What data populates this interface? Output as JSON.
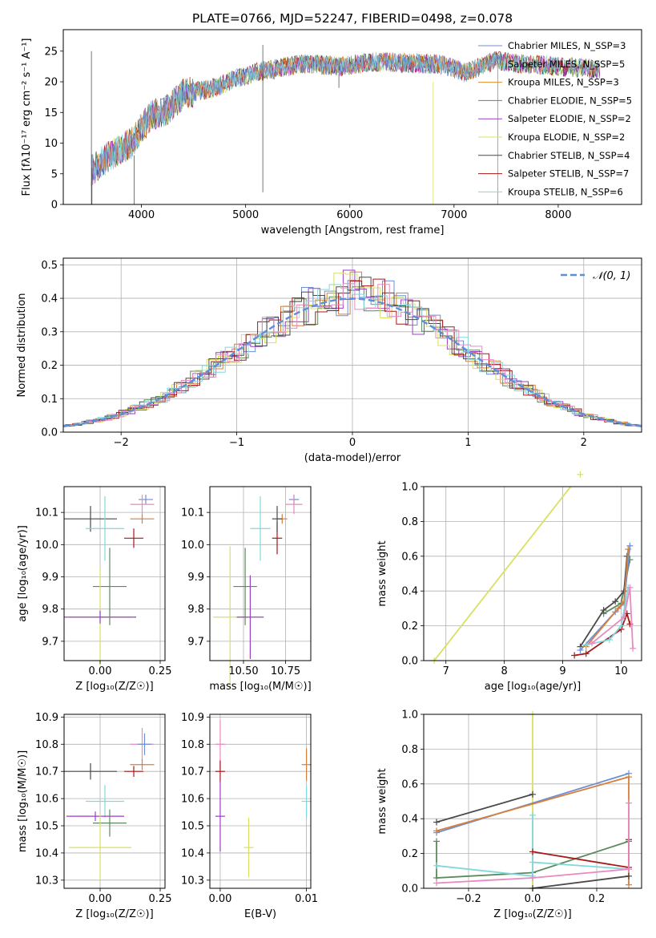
{
  "figure_title": "PLATE=0766, MJD=52247, FIBERID=0498, z=0.078",
  "colors": {
    "Chabrier MILES": "#6d8fd6",
    "Salpeter MILES": "#d67f3c",
    "Kroupa MILES": "#e28b2c",
    "Chabrier ELODIE": "#5c8a5c",
    "Salpeter ELODIE": "#9b3fc4",
    "Kroupa ELODIE": "#d9e060",
    "Chabrier STELIB": "#4a4a4a",
    "Salpeter STELIB": "#a81818",
    "Kroupa STELIB": "#80d8dc",
    "pink": "#e889c0",
    "gauss": "#5b8fd6"
  },
  "chart_data": [
    {
      "type": "line",
      "title": "PLATE=0766, MJD=52247, FIBERID=0498, z=0.078",
      "xlabel": "wavelength [Angstrom, rest frame]",
      "ylabel": "Flux [fλ10⁻¹⁷ erg cm⁻² s⁻¹ A⁻¹]",
      "xlim": [
        3250,
        8800
      ],
      "ylim": [
        0,
        28.5
      ],
      "xticks": [
        "4000",
        "5000",
        "6000",
        "7000",
        "8000"
      ],
      "yticks": [
        "0",
        "5",
        "10",
        "15",
        "20",
        "25"
      ],
      "grid": false,
      "legend_position": "upper right",
      "legend": [
        "Chabrier MILES, N_SSP=3",
        "Salpeter MILES, N_SSP=5",
        "Kroupa MILES, N_SSP=3",
        "Chabrier ELODIE, N_SSP=5",
        "Salpeter ELODIE, N_SSP=2",
        "Kroupa ELODIE, N_SSP=2",
        "Chabrier STELIB, N_SSP=4",
        "Salpeter STELIB, N_SSP=7",
        "Kroupa STELIB, N_SSP=6"
      ],
      "continuum": [
        [
          3520,
          5.5
        ],
        [
          3700,
          8
        ],
        [
          3900,
          10
        ],
        [
          4000,
          12.5
        ],
        [
          4100,
          14.5
        ],
        [
          4250,
          15.5
        ],
        [
          4400,
          18
        ],
        [
          4700,
          19
        ],
        [
          4900,
          20.5
        ],
        [
          5100,
          21.5
        ],
        [
          5400,
          22.5
        ],
        [
          5600,
          23
        ],
        [
          5900,
          22.5
        ],
        [
          6100,
          23
        ],
        [
          6300,
          23.3
        ],
        [
          6600,
          23
        ],
        [
          6900,
          22.8
        ],
        [
          7100,
          21.5
        ],
        [
          7400,
          23.5
        ],
        [
          7600,
          23
        ],
        [
          8000,
          22.5
        ],
        [
          8400,
          22
        ]
      ]
    },
    {
      "type": "histogram",
      "xlabel": "(data-model)/error",
      "ylabel": "Normed distribution",
      "xlim": [
        -2.5,
        2.5
      ],
      "ylim": [
        0,
        0.52
      ],
      "xticks": [
        "−2",
        "−1",
        "0",
        "1",
        "2"
      ],
      "yticks": [
        "0.0",
        "0.1",
        "0.2",
        "0.3",
        "0.4",
        "0.5"
      ],
      "grid": true,
      "legend": [
        "𝒩(0, 1)"
      ],
      "legend_position": "upper right"
    },
    {
      "type": "scatter",
      "xlabel": "Z [log₁₀(Z/Z☉)]",
      "ylabel": "age  [log₁₀(age/yr)]",
      "xlim": [
        -0.15,
        0.27
      ],
      "ylim": [
        9.64,
        10.18
      ],
      "xticks": [
        "0.00",
        "0.25"
      ],
      "yticks": [
        "9.7",
        "9.8",
        "9.9",
        "10.0",
        "10.1"
      ],
      "grid": true,
      "points": [
        {
          "series": "Chabrier MILES",
          "x": 0.19,
          "y": 10.14,
          "xerr": 0.03,
          "yerr": 0.0
        },
        {
          "series": "Salpeter MILES",
          "x": 0.175,
          "y": 10.08,
          "xerr": 0.05,
          "yerr": 0.01
        },
        {
          "series": "pink",
          "x": 0.175,
          "y": 10.125,
          "xerr": 0.05,
          "yerr": 0.03
        },
        {
          "series": "Chabrier STELIB",
          "x": -0.04,
          "y": 10.08,
          "xerr": 0.11,
          "yerr": 0.04
        },
        {
          "series": "Kroupa STELIB",
          "x": 0.02,
          "y": 10.05,
          "xerr": 0.08,
          "yerr": 0.1
        },
        {
          "series": "Salpeter STELIB",
          "x": 0.14,
          "y": 10.02,
          "xerr": 0.04,
          "yerr": 0.03
        },
        {
          "series": "Chabrier ELODIE",
          "x": 0.04,
          "y": 9.87,
          "xerr": 0.07,
          "yerr": 0.12
        },
        {
          "series": "Kroupa ELODIE",
          "x": 0.0,
          "y": 9.775,
          "xerr": 0.13,
          "yerr": 0.15
        },
        {
          "series": "Salpeter ELODIE",
          "x": 0.0,
          "y": 9.775,
          "xerr": 0.15,
          "yerr": 0.02
        }
      ]
    },
    {
      "type": "scatter",
      "xlabel": "mass [log₁₀(M/M☉)]",
      "ylabel": "",
      "xlim": [
        10.3,
        10.9
      ],
      "ylim": [
        9.64,
        10.18
      ],
      "xticks": [
        "10.50",
        "10.75"
      ],
      "yticks": [
        "9.7",
        "9.8",
        "9.9",
        "10.0",
        "10.1"
      ],
      "grid": true,
      "points": [
        {
          "series": "Chabrier MILES",
          "x": 10.8,
          "y": 10.14,
          "xerr": 0.03,
          "yerr": 0.0
        },
        {
          "series": "Salpeter MILES",
          "x": 10.73,
          "y": 10.08,
          "xerr": 0.03,
          "yerr": 0.01
        },
        {
          "series": "pink",
          "x": 10.8,
          "y": 10.125,
          "xerr": 0.05,
          "yerr": 0.03
        },
        {
          "series": "Kroupa STELIB",
          "x": 10.6,
          "y": 10.05,
          "xerr": 0.06,
          "yerr": 0.1
        },
        {
          "series": "Salpeter STELIB",
          "x": 10.7,
          "y": 10.02,
          "xerr": 0.03,
          "yerr": 0.05
        },
        {
          "series": "Chabrier STELIB",
          "x": 10.7,
          "y": 10.08,
          "xerr": 0.03,
          "yerr": 0.04
        },
        {
          "series": "Chabrier ELODIE",
          "x": 10.51,
          "y": 9.87,
          "xerr": 0.07,
          "yerr": 0.12
        },
        {
          "series": "Kroupa ELODIE",
          "x": 10.42,
          "y": 9.775,
          "xerr": 0.1,
          "yerr": 0.22
        },
        {
          "series": "Salpeter ELODIE",
          "x": 10.54,
          "y": 9.775,
          "xerr": 0.08,
          "yerr": 0.13
        }
      ]
    },
    {
      "type": "line",
      "xlabel": "age  [log₁₀(age/yr)]",
      "ylabel": "mass weight",
      "xlim": [
        6.62,
        10.35
      ],
      "ylim": [
        0,
        1
      ],
      "xticks": [
        "7",
        "8",
        "9",
        "10"
      ],
      "yticks": [
        "0.0",
        "0.2",
        "0.4",
        "0.6",
        "0.8",
        "1.0"
      ],
      "grid": true,
      "series": [
        {
          "color": "Kroupa ELODIE",
          "points": [
            [
              6.8,
              0.0
            ],
            [
              9.3,
              1.07
            ]
          ]
        },
        {
          "color": "Chabrier ELODIE",
          "points": [
            [
              9.7,
              0.27
            ],
            [
              10.0,
              0.33
            ],
            [
              10.15,
              0.58
            ]
          ]
        },
        {
          "color": "Chabrier STELIB",
          "points": [
            [
              9.3,
              0.08
            ],
            [
              9.7,
              0.29
            ],
            [
              9.9,
              0.34
            ],
            [
              10.05,
              0.4
            ],
            [
              10.1,
              0.6
            ]
          ]
        },
        {
          "color": "Chabrier MILES",
          "points": [
            [
              9.3,
              0.06
            ],
            [
              9.9,
              0.28
            ],
            [
              10.05,
              0.33
            ],
            [
              10.15,
              0.66
            ]
          ]
        },
        {
          "color": "Salpeter MILES",
          "points": [
            [
              9.4,
              0.08
            ],
            [
              9.95,
              0.3
            ],
            [
              10.05,
              0.34
            ],
            [
              10.12,
              0.64
            ]
          ]
        },
        {
          "color": "Salpeter STELIB",
          "points": [
            [
              9.2,
              0.03
            ],
            [
              9.4,
              0.04
            ],
            [
              10.0,
              0.18
            ],
            [
              10.1,
              0.27
            ],
            [
              10.15,
              0.21
            ]
          ]
        },
        {
          "color": "Kroupa STELIB",
          "points": [
            [
              9.4,
              0.09
            ],
            [
              9.8,
              0.12
            ],
            [
              10.0,
              0.2
            ],
            [
              10.12,
              0.42
            ]
          ]
        },
        {
          "color": "pink",
          "points": [
            [
              9.5,
              0.1
            ],
            [
              10.05,
              0.25
            ],
            [
              10.15,
              0.42
            ],
            [
              10.2,
              0.07
            ]
          ]
        }
      ]
    },
    {
      "type": "scatter",
      "xlabel": "Z [log₁₀(Z/Z☉)]",
      "ylabel": "mass [log₁₀(M/M☉)]",
      "xlim": [
        -0.15,
        0.27
      ],
      "ylim": [
        10.27,
        10.91
      ],
      "xticks": [
        "0.00",
        "0.25"
      ],
      "yticks": [
        "10.3",
        "10.4",
        "10.5",
        "10.6",
        "10.7",
        "10.8",
        "10.9"
      ],
      "grid": true,
      "points": [
        {
          "series": "pink",
          "x": 0.175,
          "y": 10.8,
          "xerr": 0.05,
          "yerr": 0.06
        },
        {
          "series": "Chabrier MILES",
          "x": 0.185,
          "y": 10.8,
          "xerr": 0.03,
          "yerr": 0.04
        },
        {
          "series": "Salpeter MILES",
          "x": 0.175,
          "y": 10.725,
          "xerr": 0.05,
          "yerr": 0.02
        },
        {
          "series": "Chabrier STELIB",
          "x": -0.04,
          "y": 10.7,
          "xerr": 0.11,
          "yerr": 0.03
        },
        {
          "series": "Salpeter STELIB",
          "x": 0.14,
          "y": 10.7,
          "xerr": 0.04,
          "yerr": 0.02
        },
        {
          "series": "Kroupa STELIB",
          "x": 0.02,
          "y": 10.59,
          "xerr": 0.08,
          "yerr": 0.06
        },
        {
          "series": "Salpeter ELODIE",
          "x": -0.02,
          "y": 10.535,
          "xerr": 0.12,
          "yerr": 0.01
        },
        {
          "series": "Chabrier ELODIE",
          "x": 0.04,
          "y": 10.51,
          "xerr": 0.07,
          "yerr": 0.05
        },
        {
          "series": "Kroupa ELODIE",
          "x": 0.0,
          "y": 10.42,
          "xerr": 0.13,
          "yerr": 0.12
        }
      ]
    },
    {
      "type": "scatter",
      "xlabel": "E(B-V)",
      "ylabel": "",
      "xlim": [
        -0.0012,
        0.0105
      ],
      "ylim": [
        10.27,
        10.91
      ],
      "xticks": [
        "0.00",
        "0.01"
      ],
      "yticks": [
        "10.3",
        "10.4",
        "10.5",
        "10.6",
        "10.7",
        "10.8",
        "10.9"
      ],
      "grid": true,
      "points": [
        {
          "series": "pink",
          "x": 0.0,
          "y": 10.8,
          "xerr": 0.0,
          "yerr": 0.09
        },
        {
          "series": "Salpeter STELIB",
          "x": 0.0,
          "y": 10.7,
          "xerr": 0.0,
          "yerr": 0.04
        },
        {
          "series": "Salpeter ELODIE",
          "x": 0.0,
          "y": 10.535,
          "xerr": 0.0,
          "yerr": 0.13
        },
        {
          "series": "Kroupa ELODIE",
          "x": 0.0033,
          "y": 10.42,
          "xerr": 0.0,
          "yerr": 0.11
        },
        {
          "series": "Salpeter MILES",
          "x": 0.01,
          "y": 10.725,
          "xerr": 0.0,
          "yerr": 0.06
        },
        {
          "series": "Kroupa STELIB",
          "x": 0.01,
          "y": 10.59,
          "xerr": 0.0,
          "yerr": 0.06
        }
      ]
    },
    {
      "type": "line",
      "xlabel": "Z [log₁₀(Z/Z☉)]",
      "ylabel": "mass weight",
      "xlim": [
        -0.34,
        0.34
      ],
      "ylim": [
        0,
        1
      ],
      "xticks": [
        "−0.2",
        "0.0",
        "0.2"
      ],
      "yticks": [
        "0.0",
        "0.2",
        "0.4",
        "0.6",
        "0.8",
        "1.0"
      ],
      "grid": true,
      "series": [
        {
          "color": "Kroupa ELODIE",
          "points": [
            [
              0.0,
              0.0
            ],
            [
              0.0,
              1.0
            ]
          ]
        },
        {
          "color": "Chabrier STELIB",
          "points": [
            [
              -0.3,
              0.38
            ],
            [
              0.0,
              0.54
            ]
          ]
        },
        {
          "color": "Chabrier MILES",
          "points": [
            [
              -0.3,
              0.32
            ],
            [
              0.3,
              0.66
            ]
          ]
        },
        {
          "color": "Salpeter MILES",
          "points": [
            [
              -0.3,
              0.33
            ],
            [
              0.3,
              0.64
            ],
            [
              0.3,
              0.02
            ]
          ]
        },
        {
          "color": "Chabrier ELODIE",
          "points": [
            [
              -0.3,
              0.27
            ],
            [
              -0.3,
              0.06
            ],
            [
              0.0,
              0.09
            ],
            [
              0.3,
              0.27
            ]
          ]
        },
        {
          "color": "Kroupa STELIB",
          "points": [
            [
              -0.3,
              0.13
            ],
            [
              0.0,
              0.07
            ],
            [
              0.0,
              0.42
            ],
            [
              0.0,
              0.15
            ],
            [
              0.3,
              0.11
            ]
          ]
        },
        {
          "color": "Salpeter STELIB",
          "points": [
            [
              0.0,
              0.21
            ],
            [
              0.3,
              0.12
            ],
            [
              0.3,
              0.28
            ]
          ]
        },
        {
          "color": "pink",
          "points": [
            [
              -0.3,
              0.03
            ],
            [
              0.0,
              0.06
            ],
            [
              0.3,
              0.11
            ],
            [
              0.3,
              0.49
            ]
          ]
        },
        {
          "color": "Chabrier STELIB",
          "points": [
            [
              0.0,
              0.0
            ],
            [
              0.3,
              0.07
            ]
          ]
        }
      ]
    }
  ]
}
